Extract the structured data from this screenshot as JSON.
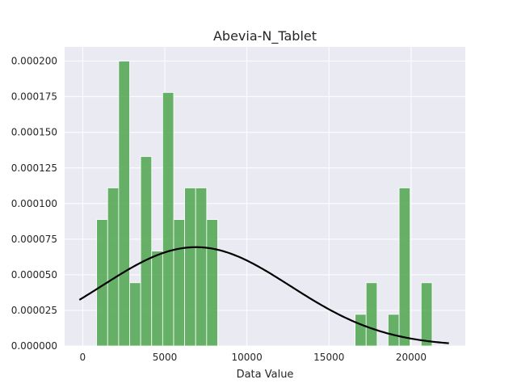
{
  "chart_data": {
    "type": "bar",
    "title": "Abevia-N_Tablet",
    "xlabel": "Data Value",
    "ylabel": "",
    "grid": true,
    "legend": "none",
    "xlim": [
      -1100,
      23300
    ],
    "ylim": [
      0,
      0.00021
    ],
    "x_ticks": [
      {
        "value": 0,
        "label": "0"
      },
      {
        "value": 5000,
        "label": "5000"
      },
      {
        "value": 10000,
        "label": "10000"
      },
      {
        "value": 15000,
        "label": "15000"
      },
      {
        "value": 20000,
        "label": "20000"
      }
    ],
    "y_ticks": [
      {
        "value": 0,
        "label": "0.000000"
      },
      {
        "value": 2.5e-05,
        "label": "0.000025"
      },
      {
        "value": 5e-05,
        "label": "0.000050"
      },
      {
        "value": 7.5e-05,
        "label": "0.000075"
      },
      {
        "value": 0.0001,
        "label": "0.000100"
      },
      {
        "value": 0.000125,
        "label": "0.000125"
      },
      {
        "value": 0.00015,
        "label": "0.000150"
      },
      {
        "value": 0.000175,
        "label": "0.000175"
      },
      {
        "value": 0.0002,
        "label": "0.000200"
      }
    ],
    "histogram": {
      "bin_width": 670,
      "bars": [
        {
          "x0": 850,
          "value": 8.88e-05
        },
        {
          "x0": 1520,
          "value": 0.000111
        },
        {
          "x0": 2190,
          "value": 0.0002
        },
        {
          "x0": 2860,
          "value": 4.44e-05
        },
        {
          "x0": 3530,
          "value": 0.000133
        },
        {
          "x0": 4200,
          "value": 6.66e-05
        },
        {
          "x0": 4870,
          "value": 0.000178
        },
        {
          "x0": 5540,
          "value": 8.88e-05
        },
        {
          "x0": 6210,
          "value": 0.000111
        },
        {
          "x0": 6880,
          "value": 0.000111
        },
        {
          "x0": 7550,
          "value": 8.88e-05
        },
        {
          "x0": 16590,
          "value": 2.22e-05
        },
        {
          "x0": 17260,
          "value": 4.44e-05
        },
        {
          "x0": 18600,
          "value": 2.22e-05
        },
        {
          "x0": 19270,
          "value": 0.000111
        },
        {
          "x0": 20610,
          "value": 4.44e-05
        }
      ]
    },
    "curve": {
      "type": "normal-pdf",
      "mean": 6900,
      "std": 5750,
      "x_range": [
        -200,
        22300
      ]
    },
    "colors": {
      "bar": "#4da64d",
      "curve": "#000000",
      "plot_background": "#eaeaf2",
      "grid": "#ffffff"
    }
  }
}
